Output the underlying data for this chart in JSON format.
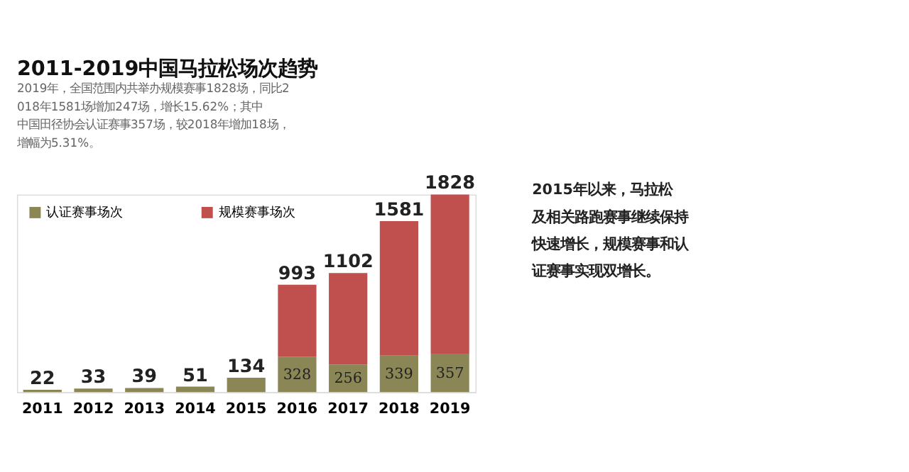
{
  "chart_data": {
    "type": "bar",
    "title": "2011-2019中国马拉松场次趋势",
    "subtitle": "2019年，全国范围内共举办规模赛事1828场，同比2018年1581场增加247场，增长15.62%；其中中国田径协会认证赛事357场，较2018年增加18场，增幅为5.31%。",
    "categories": [
      "2011",
      "2012",
      "2013",
      "2014",
      "2015",
      "2016",
      "2017",
      "2018",
      "2019"
    ],
    "stacked": true,
    "series": [
      {
        "name": "认证赛事场次",
        "color": "#8b8655",
        "values": [
          22,
          33,
          39,
          51,
          134,
          328,
          256,
          339,
          357
        ],
        "value_labels": [
          null,
          null,
          null,
          null,
          null,
          "328",
          "256",
          "339",
          "357"
        ]
      },
      {
        "name": "规模赛事场次",
        "color": "#c0504d",
        "values": [
          null,
          null,
          null,
          null,
          null,
          665,
          846,
          1242,
          1471
        ]
      }
    ],
    "totals": [
      "22",
      "33",
      "39",
      "51",
      "134",
      "993",
      "1102",
      "1581",
      "1828"
    ],
    "legend": "top left",
    "grid": false,
    "annotations": [
      "2015年以来，马拉松及相关路跑赛事继续保持快速增长，规模赛事和认证赛事实现双增长。"
    ]
  }
}
